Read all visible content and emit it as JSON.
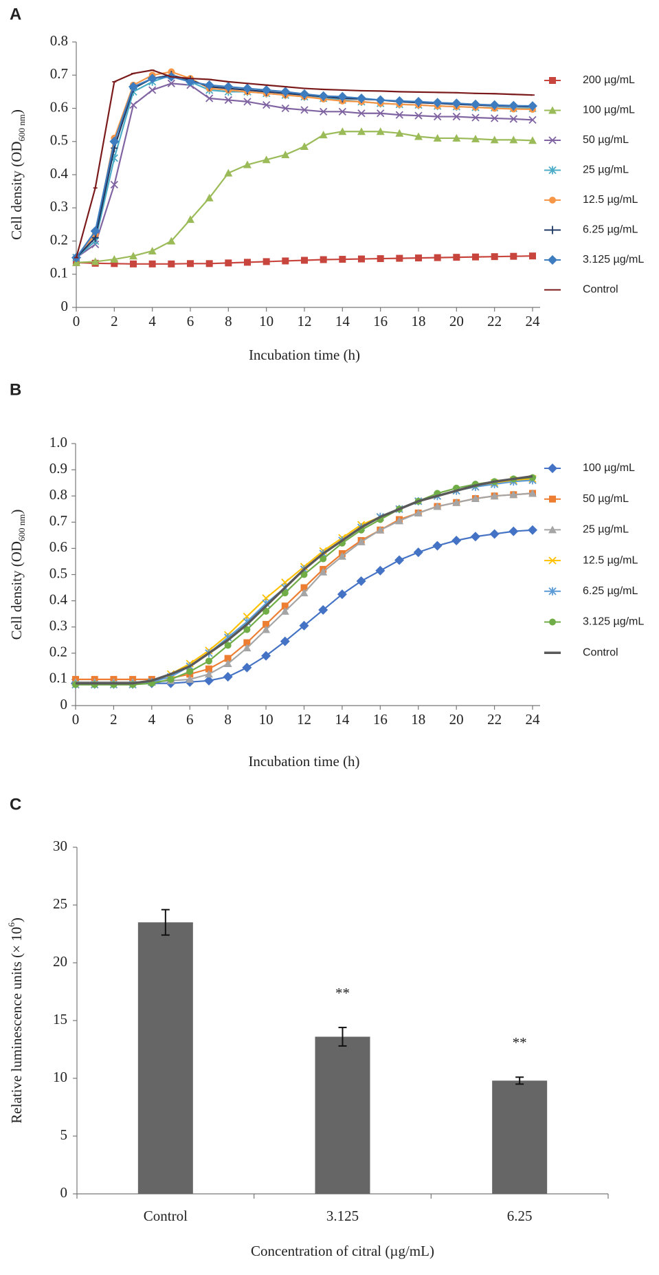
{
  "chart_data": [
    {
      "type": "line",
      "panel": "A",
      "ylabel": {
        "text": "Cell density (OD",
        "sub": "600 nm",
        "end": ")"
      },
      "xlabel": "Incubation time (h)",
      "x": [
        0,
        1,
        2,
        3,
        4,
        5,
        6,
        7,
        8,
        9,
        10,
        11,
        12,
        13,
        14,
        15,
        16,
        17,
        18,
        19,
        20,
        21,
        22,
        23,
        24
      ],
      "xlim": [
        0,
        24
      ],
      "xticks": [
        0,
        2,
        4,
        6,
        8,
        10,
        12,
        14,
        16,
        18,
        20,
        22,
        24
      ],
      "ylim": [
        0,
        0.8
      ],
      "yticks": [
        0,
        0.1,
        0.2,
        0.3,
        0.4,
        0.5,
        0.6,
        0.7,
        0.8
      ],
      "series": [
        {
          "name": "200 µg/mL",
          "color": "#c8453e",
          "marker": "square",
          "values": [
            0.135,
            0.133,
            0.132,
            0.131,
            0.131,
            0.131,
            0.132,
            0.132,
            0.134,
            0.136,
            0.138,
            0.14,
            0.142,
            0.144,
            0.145,
            0.146,
            0.147,
            0.148,
            0.149,
            0.15,
            0.151,
            0.152,
            0.153,
            0.154,
            0.155
          ]
        },
        {
          "name": "100 µg/mL",
          "color": "#9bbb59",
          "marker": "triangle",
          "values": [
            0.135,
            0.138,
            0.145,
            0.155,
            0.17,
            0.2,
            0.265,
            0.33,
            0.405,
            0.43,
            0.445,
            0.46,
            0.485,
            0.52,
            0.53,
            0.53,
            0.53,
            0.525,
            0.515,
            0.51,
            0.51,
            0.508,
            0.505,
            0.505,
            0.503
          ]
        },
        {
          "name": "50 µg/mL",
          "color": "#8064a2",
          "marker": "x",
          "values": [
            0.15,
            0.19,
            0.37,
            0.61,
            0.655,
            0.675,
            0.67,
            0.63,
            0.625,
            0.62,
            0.61,
            0.6,
            0.595,
            0.59,
            0.59,
            0.585,
            0.585,
            0.58,
            0.578,
            0.575,
            0.575,
            0.572,
            0.57,
            0.568,
            0.565
          ]
        },
        {
          "name": "25 µg/mL",
          "color": "#4bacc6",
          "marker": "asterisk",
          "values": [
            0.15,
            0.2,
            0.45,
            0.65,
            0.68,
            0.7,
            0.68,
            0.655,
            0.65,
            0.65,
            0.645,
            0.64,
            0.635,
            0.63,
            0.625,
            0.62,
            0.615,
            0.612,
            0.61,
            0.607,
            0.605,
            0.603,
            0.602,
            0.6,
            0.6
          ]
        },
        {
          "name": "12.5 µg/mL",
          "color": "#f79646",
          "marker": "circle",
          "values": [
            0.15,
            0.22,
            0.51,
            0.67,
            0.7,
            0.71,
            0.69,
            0.66,
            0.655,
            0.65,
            0.645,
            0.64,
            0.635,
            0.628,
            0.622,
            0.62,
            0.615,
            0.612,
            0.61,
            0.607,
            0.605,
            0.603,
            0.6,
            0.598,
            0.597
          ]
        },
        {
          "name": "6.25 µg/mL",
          "color": "#1f3864",
          "marker": "plus",
          "values": [
            0.15,
            0.21,
            0.48,
            0.66,
            0.69,
            0.7,
            0.685,
            0.665,
            0.66,
            0.655,
            0.65,
            0.645,
            0.64,
            0.635,
            0.63,
            0.628,
            0.625,
            0.62,
            0.617,
            0.615,
            0.612,
            0.61,
            0.608,
            0.606,
            0.605
          ]
        },
        {
          "name": "3.125 µg/mL",
          "color": "#3e7cc0",
          "marker": "diamond",
          "values": [
            0.15,
            0.23,
            0.5,
            0.665,
            0.69,
            0.695,
            0.68,
            0.67,
            0.665,
            0.66,
            0.655,
            0.65,
            0.643,
            0.637,
            0.635,
            0.63,
            0.625,
            0.622,
            0.62,
            0.617,
            0.615,
            0.612,
            0.61,
            0.608,
            0.607
          ]
        },
        {
          "name": "Control",
          "color": "#7b1a1a",
          "marker": "dash",
          "values": [
            0.15,
            0.36,
            0.68,
            0.705,
            0.715,
            0.695,
            0.69,
            0.687,
            0.68,
            0.675,
            0.67,
            0.665,
            0.66,
            0.657,
            0.655,
            0.653,
            0.652,
            0.65,
            0.649,
            0.648,
            0.647,
            0.645,
            0.644,
            0.642,
            0.64
          ]
        }
      ]
    },
    {
      "type": "line",
      "panel": "B",
      "ylabel": {
        "text": "Cell density (OD",
        "sub": "600 nm",
        "end": ")"
      },
      "xlabel": "Incubation time (h)",
      "x": [
        0,
        1,
        2,
        3,
        4,
        5,
        6,
        7,
        8,
        9,
        10,
        11,
        12,
        13,
        14,
        15,
        16,
        17,
        18,
        19,
        20,
        21,
        22,
        23,
        24
      ],
      "xlim": [
        0,
        24
      ],
      "xticks": [
        0,
        2,
        4,
        6,
        8,
        10,
        12,
        14,
        16,
        18,
        20,
        22,
        24
      ],
      "ylim": [
        0,
        1
      ],
      "yticks": [
        0,
        0.1,
        0.2,
        0.3,
        0.4,
        0.5,
        0.6,
        0.7,
        0.8,
        0.9,
        {
          "value": 1,
          "label": "1.0"
        }
      ],
      "series": [
        {
          "name": "100 µg/mL",
          "color": "#4472c4",
          "marker": "diamond",
          "values": [
            0.085,
            0.085,
            0.085,
            0.085,
            0.085,
            0.085,
            0.09,
            0.095,
            0.11,
            0.145,
            0.19,
            0.245,
            0.305,
            0.365,
            0.425,
            0.475,
            0.515,
            0.555,
            0.585,
            0.61,
            0.63,
            0.645,
            0.655,
            0.665,
            0.67
          ]
        },
        {
          "name": "50 µg/mL",
          "color": "#ed7d31",
          "marker": "square",
          "values": [
            0.1,
            0.1,
            0.1,
            0.1,
            0.1,
            0.105,
            0.12,
            0.14,
            0.18,
            0.24,
            0.31,
            0.38,
            0.45,
            0.52,
            0.58,
            0.63,
            0.67,
            0.71,
            0.735,
            0.76,
            0.775,
            0.79,
            0.8,
            0.805,
            0.81
          ]
        },
        {
          "name": "25 µg/mL",
          "color": "#a5a5a5",
          "marker": "triangle",
          "values": [
            0.09,
            0.09,
            0.09,
            0.09,
            0.09,
            0.095,
            0.1,
            0.12,
            0.16,
            0.22,
            0.29,
            0.36,
            0.43,
            0.51,
            0.57,
            0.625,
            0.67,
            0.705,
            0.735,
            0.76,
            0.775,
            0.79,
            0.8,
            0.805,
            0.81
          ]
        },
        {
          "name": "12.5 µg/mL",
          "color": "#ffc000",
          "marker": "x",
          "values": [
            0.08,
            0.08,
            0.08,
            0.08,
            0.09,
            0.12,
            0.16,
            0.21,
            0.27,
            0.34,
            0.41,
            0.47,
            0.53,
            0.59,
            0.64,
            0.69,
            0.72,
            0.75,
            0.78,
            0.8,
            0.82,
            0.835,
            0.85,
            0.86,
            0.865
          ]
        },
        {
          "name": "6.25 µg/mL",
          "color": "#5b9bd5",
          "marker": "asterisk",
          "values": [
            0.08,
            0.08,
            0.08,
            0.08,
            0.09,
            0.11,
            0.15,
            0.2,
            0.26,
            0.32,
            0.39,
            0.45,
            0.52,
            0.58,
            0.63,
            0.68,
            0.72,
            0.75,
            0.78,
            0.8,
            0.82,
            0.835,
            0.845,
            0.855,
            0.86
          ]
        },
        {
          "name": "3.125 µg/mL",
          "color": "#70ad47",
          "marker": "circle",
          "values": [
            0.08,
            0.08,
            0.08,
            0.08,
            0.085,
            0.1,
            0.13,
            0.17,
            0.23,
            0.29,
            0.36,
            0.43,
            0.5,
            0.56,
            0.62,
            0.67,
            0.71,
            0.75,
            0.78,
            0.81,
            0.83,
            0.845,
            0.855,
            0.865,
            0.87
          ]
        },
        {
          "name": "Control",
          "color": "#595959",
          "marker": "none",
          "values": [
            0.085,
            0.085,
            0.085,
            0.085,
            0.095,
            0.12,
            0.15,
            0.2,
            0.25,
            0.31,
            0.38,
            0.45,
            0.52,
            0.58,
            0.63,
            0.68,
            0.72,
            0.75,
            0.78,
            0.8,
            0.82,
            0.84,
            0.855,
            0.865,
            0.875
          ]
        }
      ]
    },
    {
      "type": "bar",
      "panel": "C",
      "ylabel": {
        "text": "Relative luminescence units (× 10",
        "sup": "6",
        "end": ")"
      },
      "xlabel": "Concentration of citral (µg/mL)",
      "categories": [
        "Control",
        "3.125",
        "6.25"
      ],
      "values": [
        23.5,
        13.6,
        9.8
      ],
      "errors": [
        1.1,
        0.8,
        0.3
      ],
      "significance": [
        {
          "category": "3.125",
          "text": "**"
        },
        {
          "category": "6.25",
          "text": "**"
        }
      ],
      "color": "#666666",
      "ylim": [
        0,
        30
      ],
      "yticks": [
        0,
        5,
        10,
        15,
        20,
        25,
        30
      ]
    }
  ]
}
